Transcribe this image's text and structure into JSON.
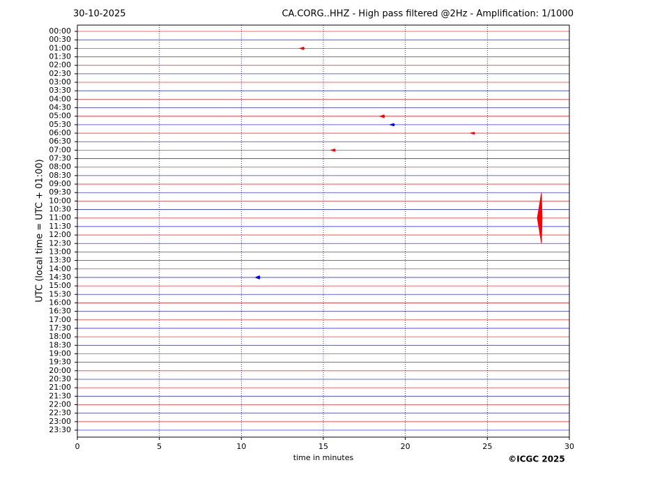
{
  "chart_data": {
    "type": "helicorder",
    "date": "30-10-2025",
    "title": "CA.CORG..HHZ - High pass filtered @2Hz - Amplification: 1/1000",
    "ylabel": "UTC (local time = UTC + 01:00)",
    "xlabel": "time in minutes",
    "copyright": "©ICGC 2025",
    "categories": [
      "00:00",
      "00:30",
      "01:00",
      "01:30",
      "02:00",
      "02:30",
      "03:00",
      "03:30",
      "04:00",
      "04:30",
      "05:00",
      "05:30",
      "06:00",
      "06:30",
      "07:00",
      "07:30",
      "08:00",
      "08:30",
      "09:00",
      "09:30",
      "10:00",
      "10:30",
      "11:00",
      "11:30",
      "12:00",
      "12:30",
      "13:00",
      "13:30",
      "14:00",
      "14:30",
      "15:00",
      "15:30",
      "16:00",
      "16:30",
      "17:00",
      "17:30",
      "18:00",
      "18:30",
      "19:00",
      "19:30",
      "20:00",
      "20:30",
      "21:00",
      "21:30",
      "22:00",
      "22:30",
      "23:00",
      "23:30"
    ],
    "colors": [
      "#ff0000",
      "#0000ff"
    ],
    "xlim": [
      0,
      30
    ],
    "xticks": [
      0,
      5,
      10,
      15,
      20,
      25,
      30
    ],
    "grid": true,
    "events": [
      {
        "row": "01:00",
        "x": 13.8,
        "height": 0.3,
        "color": "#ff0000"
      },
      {
        "row": "05:00",
        "x": 18.7,
        "height": 0.35,
        "color": "#ff0000"
      },
      {
        "row": "05:30",
        "x": 19.3,
        "height": 0.3,
        "color": "#0000ff"
      },
      {
        "row": "06:00",
        "x": 24.2,
        "height": 0.25,
        "color": "#ff0000"
      },
      {
        "row": "07:00",
        "x": 15.7,
        "height": 0.3,
        "color": "#ff0000"
      },
      {
        "row": "11:00",
        "x": 28.3,
        "height": 6,
        "color": "#ff0000"
      },
      {
        "row": "14:30",
        "x": 11.1,
        "height": 0.4,
        "color": "#0000ff"
      }
    ]
  }
}
